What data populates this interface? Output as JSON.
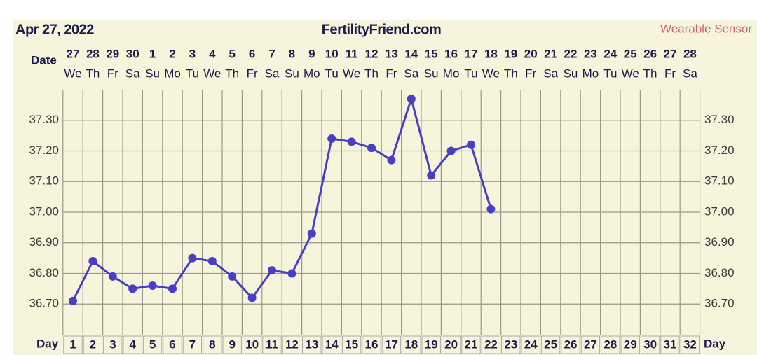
{
  "chart_data": {
    "type": "line",
    "date_title": "Apr 27, 2022",
    "site": "FertilityFriend.com",
    "source": "Wearable Sensor",
    "date_label": "Date",
    "day_label": "Day",
    "x": [
      1,
      2,
      3,
      4,
      5,
      6,
      7,
      8,
      9,
      10,
      11,
      12,
      13,
      14,
      15,
      16,
      17,
      18,
      19,
      20,
      21,
      22,
      23,
      24,
      25,
      26,
      27,
      28,
      29,
      30,
      31,
      32
    ],
    "dates": [
      "27",
      "28",
      "29",
      "30",
      "1",
      "2",
      "3",
      "4",
      "5",
      "6",
      "7",
      "8",
      "9",
      "10",
      "11",
      "12",
      "13",
      "14",
      "15",
      "16",
      "17",
      "18",
      "19",
      "20",
      "21",
      "22",
      "23",
      "24",
      "25",
      "26",
      "27",
      "28"
    ],
    "weekdays": [
      "We",
      "Th",
      "Fr",
      "Sa",
      "Su",
      "Mo",
      "Tu",
      "We",
      "Th",
      "Fr",
      "Sa",
      "Su",
      "Mo",
      "Tu",
      "We",
      "Th",
      "Fr",
      "Sa",
      "Su",
      "Mo",
      "Tu",
      "We",
      "Th",
      "Fr",
      "Sa",
      "Su",
      "Mo",
      "Tu",
      "We",
      "Th",
      "Fr",
      "Sa"
    ],
    "values": [
      36.71,
      36.84,
      36.79,
      36.75,
      36.76,
      36.75,
      36.85,
      36.84,
      36.79,
      36.72,
      36.81,
      36.8,
      36.93,
      37.24,
      37.23,
      37.21,
      37.17,
      37.37,
      37.12,
      37.2,
      37.22,
      37.01,
      null,
      null,
      null,
      null,
      null,
      null,
      null,
      null,
      null,
      null
    ],
    "color": "#4a3fc4",
    "xlim": [
      0.5,
      32.5
    ],
    "ylim": [
      36.6,
      37.4
    ],
    "yticks": [
      {
        "value": 36.7,
        "label": "36.70"
      },
      {
        "value": 36.8,
        "label": "36.80"
      },
      {
        "value": 36.9,
        "label": "36.90"
      },
      {
        "value": 37.0,
        "label": "37.00"
      },
      {
        "value": 37.1,
        "label": "37.10"
      },
      {
        "value": 37.2,
        "label": "37.20"
      },
      {
        "value": 37.3,
        "label": "37.30"
      }
    ],
    "grid": true
  }
}
